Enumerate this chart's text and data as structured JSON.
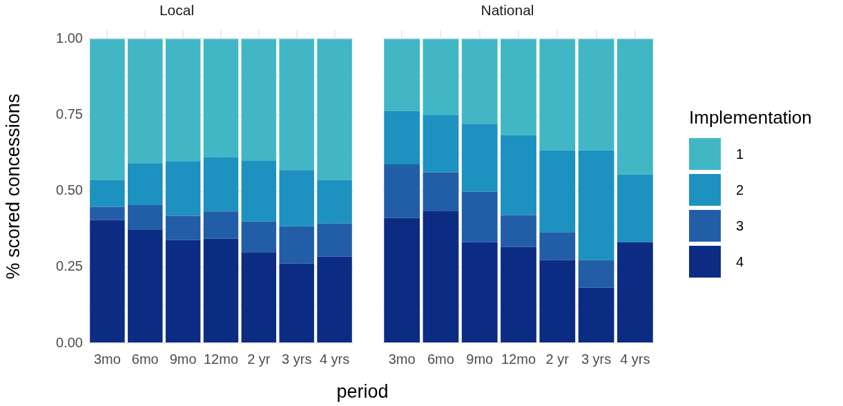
{
  "chart_data": [
    {
      "type": "bar",
      "title": "Local",
      "xlabel": "period",
      "ylabel": "% scored concessions",
      "stacked": true,
      "categories": [
        "3mo",
        "6mo",
        "9mo",
        "12mo",
        "2 yr",
        "3 yrs",
        "4 yrs"
      ],
      "series": [
        {
          "name": "4",
          "color": "#0c2c84",
          "values": [
            0.405,
            0.374,
            0.339,
            0.344,
            0.299,
            0.262,
            0.285
          ]
        },
        {
          "name": "3",
          "color": "#225ea8",
          "values": [
            0.043,
            0.08,
            0.08,
            0.089,
            0.101,
            0.122,
            0.108
          ]
        },
        {
          "name": "2",
          "color": "#1d91c0",
          "values": [
            0.088,
            0.138,
            0.178,
            0.178,
            0.199,
            0.185,
            0.143
          ]
        },
        {
          "name": "1",
          "color": "#41b6c4",
          "values": [
            0.464,
            0.408,
            0.403,
            0.389,
            0.401,
            0.431,
            0.464
          ]
        }
      ],
      "ylim": [
        0,
        1.03
      ],
      "yticks": [
        {
          "value": 0,
          "label": "0.00"
        },
        {
          "value": 0.125,
          "label": null
        },
        {
          "value": 0.25,
          "label": "0.25"
        },
        {
          "value": 0.375,
          "label": null
        },
        {
          "value": 0.5,
          "label": "0.50"
        },
        {
          "value": 0.625,
          "label": null
        },
        {
          "value": 0.75,
          "label": "0.75"
        },
        {
          "value": 0.875,
          "label": null
        },
        {
          "value": 1,
          "label": "1.00"
        }
      ],
      "grid": true,
      "legend": "right",
      "legend_title": "Implementation"
    },
    {
      "type": "bar",
      "title": "National",
      "stacked": true,
      "categories": [
        "3mo",
        "6mo",
        "9mo",
        "12mo",
        "2 yr",
        "3 yrs",
        "4 yrs"
      ],
      "series": [
        {
          "name": "4",
          "color": "#0c2c84",
          "values": [
            0.412,
            0.435,
            0.332,
            0.316,
            0.273,
            0.182,
            0.332
          ]
        },
        {
          "name": "3",
          "color": "#225ea8",
          "values": [
            0.176,
            0.127,
            0.166,
            0.105,
            0.092,
            0.091,
            0
          ]
        },
        {
          "name": "2",
          "color": "#1d91c0",
          "values": [
            0.175,
            0.187,
            0.223,
            0.263,
            0.269,
            0.361,
            0.223
          ]
        },
        {
          "name": "1",
          "color": "#41b6c4",
          "values": [
            0.237,
            0.251,
            0.279,
            0.316,
            0.366,
            0.366,
            0.445
          ]
        }
      ],
      "ylim": [
        0,
        1.03
      ],
      "yticks": [
        {
          "value": 0,
          "label": null
        },
        {
          "value": 0.125,
          "label": null
        },
        {
          "value": 0.25,
          "label": null
        },
        {
          "value": 0.375,
          "label": null
        },
        {
          "value": 0.5,
          "label": null
        },
        {
          "value": 0.625,
          "label": null
        },
        {
          "value": 0.75,
          "label": null
        },
        {
          "value": 0.875,
          "label": null
        },
        {
          "value": 1,
          "label": null
        }
      ],
      "grid": true,
      "tick_labels": "x"
    }
  ]
}
